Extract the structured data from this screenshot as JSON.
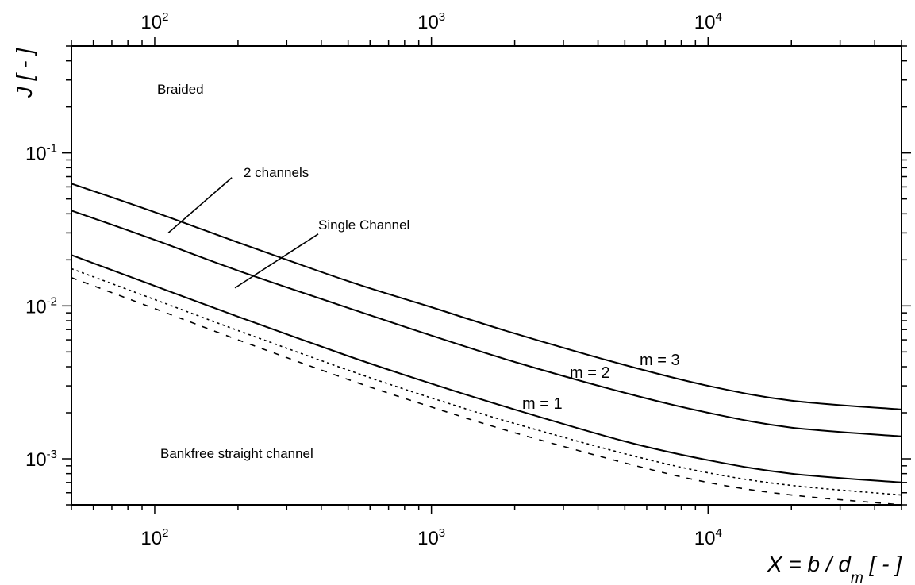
{
  "chart_data": {
    "type": "line",
    "title": "",
    "x_scale": "log",
    "y_scale": "log",
    "xlim": [
      50,
      50000
    ],
    "ylim": [
      0.0005,
      0.5
    ],
    "grid": false,
    "xlabel": {
      "prefix": "X = b  / d",
      "sub": "m",
      "suffix": "  [ - ]"
    },
    "ylabel": "J [ - ]",
    "x_ticks": [
      {
        "value": 100,
        "base": "10",
        "exp": "2"
      },
      {
        "value": 1000,
        "base": "10",
        "exp": "3"
      },
      {
        "value": 10000,
        "base": "10",
        "exp": "4"
      }
    ],
    "y_ticks": [
      {
        "value": 0.1,
        "base": "10",
        "exp": "-1"
      },
      {
        "value": 0.01,
        "base": "10",
        "exp": "-2"
      },
      {
        "value": 0.001,
        "base": "10",
        "exp": "-3"
      }
    ],
    "series": [
      {
        "name": "m = 3",
        "style": "solid",
        "x": [
          50,
          100,
          200,
          500,
          1000,
          2000,
          5000,
          10000,
          20000,
          50000
        ],
        "y": [
          0.063,
          0.041,
          0.026,
          0.0145,
          0.0098,
          0.0066,
          0.0041,
          0.003,
          0.0024,
          0.0021
        ]
      },
      {
        "name": "m = 2",
        "style": "solid",
        "x": [
          50,
          100,
          200,
          500,
          1000,
          2000,
          5000,
          10000,
          20000,
          50000
        ],
        "y": [
          0.042,
          0.027,
          0.017,
          0.0097,
          0.0064,
          0.0043,
          0.0027,
          0.002,
          0.0016,
          0.0014
        ]
      },
      {
        "name": "m = 1",
        "style": "solid",
        "x": [
          50,
          100,
          200,
          500,
          1000,
          2000,
          5000,
          10000,
          20000,
          50000
        ],
        "y": [
          0.0215,
          0.0135,
          0.0085,
          0.0047,
          0.0031,
          0.0021,
          0.0013,
          0.00098,
          0.0008,
          0.0007
        ]
      },
      {
        "style": "dotted",
        "x": [
          50,
          100,
          200,
          500,
          1000,
          2000,
          5000,
          10000,
          20000,
          50000
        ],
        "y": [
          0.0175,
          0.011,
          0.0069,
          0.0038,
          0.0025,
          0.0017,
          0.00108,
          0.00081,
          0.00067,
          0.00058
        ]
      },
      {
        "style": "dashed",
        "x": [
          50,
          100,
          200,
          500,
          1000,
          2000,
          5000,
          10000,
          20000,
          50000
        ],
        "y": [
          0.0153,
          0.0096,
          0.006,
          0.0033,
          0.00218,
          0.00148,
          0.00094,
          0.0007,
          0.00058,
          0.0005
        ]
      }
    ],
    "annotations": {
      "braided": "Braided",
      "two_channels": "2 channels",
      "single_channel": "Single Channel",
      "bankfree": "Bankfree straight channel",
      "m3": "m = 3",
      "m2": "m = 2",
      "m1": "m = 1"
    },
    "leader_lines": {
      "two_channels": {
        "from": [
          112,
          0.03
        ],
        "to": [
          190,
          0.069
        ]
      },
      "single_channel": {
        "from": [
          195,
          0.0131
        ],
        "to": [
          390,
          0.0295
        ]
      }
    }
  }
}
